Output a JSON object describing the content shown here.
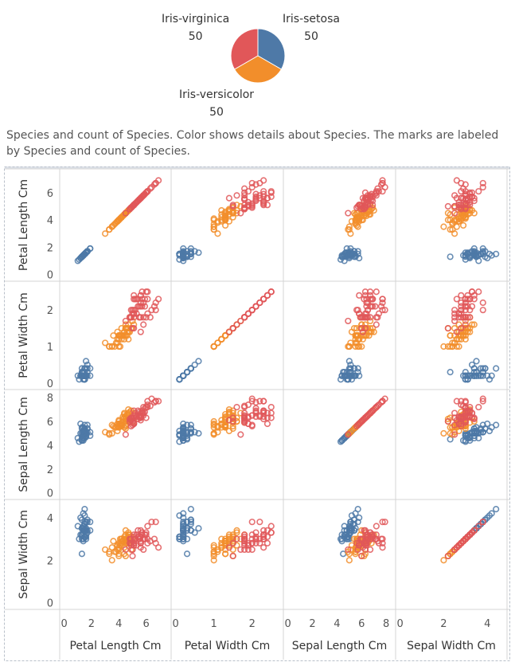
{
  "pie": {
    "slices": [
      {
        "name": "Iris-setosa",
        "count": 50,
        "color": "#4e79a7"
      },
      {
        "name": "Iris-versicolor",
        "count": 50,
        "color": "#f28e2b"
      },
      {
        "name": "Iris-virginica",
        "count": 50,
        "color": "#e15759"
      }
    ],
    "labels": {
      "setosa_name": "Iris-setosa",
      "setosa_count": "50",
      "versicolor_name": "Iris-versicolor",
      "versicolor_count": "50",
      "virginica_name": "Iris-virginica",
      "virginica_count": "50"
    }
  },
  "caption": "Species and count of Species.  Color shows details about Species.  The marks are labeled by Species and count of Species.",
  "chart_data": {
    "type": "scatter",
    "variables": [
      "Petal Length Cm",
      "Petal Width Cm",
      "Sepal Length Cm",
      "Sepal Width Cm"
    ],
    "axes": {
      "Petal Length Cm": {
        "range": [
          0,
          7.5
        ],
        "ticks": [
          0,
          2,
          4,
          6
        ]
      },
      "Petal Width Cm": {
        "range": [
          0,
          2.7
        ],
        "ticks": [
          0,
          1,
          2
        ]
      },
      "Sepal Length Cm": {
        "range": [
          0,
          8.4
        ],
        "ticks": [
          0,
          2,
          4,
          6,
          8
        ]
      },
      "Sepal Width Cm": {
        "range": [
          0,
          4.7
        ],
        "ticks": [
          0,
          2,
          4
        ]
      }
    },
    "grid": false,
    "colors": {
      "Iris-setosa": "#4e79a7",
      "Iris-versicolor": "#f28e2b",
      "Iris-virginica": "#e15759"
    },
    "species": [
      {
        "name": "Iris-setosa",
        "points": [
          [
            1.4,
            0.2,
            5.1,
            3.5
          ],
          [
            1.4,
            0.2,
            4.9,
            3.0
          ],
          [
            1.3,
            0.2,
            4.7,
            3.2
          ],
          [
            1.5,
            0.2,
            4.6,
            3.1
          ],
          [
            1.4,
            0.2,
            5.0,
            3.6
          ],
          [
            1.7,
            0.4,
            5.4,
            3.9
          ],
          [
            1.4,
            0.3,
            4.6,
            3.4
          ],
          [
            1.5,
            0.2,
            5.0,
            3.4
          ],
          [
            1.4,
            0.2,
            4.4,
            2.9
          ],
          [
            1.5,
            0.1,
            4.9,
            3.1
          ],
          [
            1.5,
            0.2,
            5.4,
            3.7
          ],
          [
            1.6,
            0.2,
            4.8,
            3.4
          ],
          [
            1.4,
            0.1,
            4.8,
            3.0
          ],
          [
            1.1,
            0.1,
            4.3,
            3.0
          ],
          [
            1.2,
            0.2,
            5.8,
            4.0
          ],
          [
            1.5,
            0.4,
            5.7,
            4.4
          ],
          [
            1.3,
            0.4,
            5.4,
            3.9
          ],
          [
            1.4,
            0.3,
            5.1,
            3.5
          ],
          [
            1.7,
            0.3,
            5.7,
            3.8
          ],
          [
            1.5,
            0.3,
            5.1,
            3.8
          ],
          [
            1.7,
            0.2,
            5.4,
            3.4
          ],
          [
            1.5,
            0.4,
            5.1,
            3.7
          ],
          [
            1.0,
            0.2,
            4.6,
            3.6
          ],
          [
            1.7,
            0.5,
            5.1,
            3.3
          ],
          [
            1.9,
            0.2,
            4.8,
            3.4
          ],
          [
            1.6,
            0.2,
            5.0,
            3.0
          ],
          [
            1.6,
            0.4,
            5.0,
            3.4
          ],
          [
            1.5,
            0.2,
            5.2,
            3.5
          ],
          [
            1.4,
            0.2,
            5.2,
            3.4
          ],
          [
            1.6,
            0.2,
            4.7,
            3.2
          ],
          [
            1.6,
            0.2,
            4.8,
            3.1
          ],
          [
            1.5,
            0.4,
            5.4,
            3.4
          ],
          [
            1.5,
            0.1,
            5.2,
            4.1
          ],
          [
            1.4,
            0.2,
            5.5,
            4.2
          ],
          [
            1.5,
            0.1,
            4.9,
            3.1
          ],
          [
            1.2,
            0.2,
            5.0,
            3.2
          ],
          [
            1.3,
            0.2,
            5.5,
            3.5
          ],
          [
            1.5,
            0.1,
            4.9,
            3.1
          ],
          [
            1.3,
            0.2,
            4.4,
            3.0
          ],
          [
            1.5,
            0.2,
            5.1,
            3.4
          ],
          [
            1.3,
            0.3,
            5.0,
            3.5
          ],
          [
            1.3,
            0.3,
            4.5,
            2.3
          ],
          [
            1.3,
            0.2,
            4.4,
            3.2
          ],
          [
            1.6,
            0.6,
            5.0,
            3.5
          ],
          [
            1.9,
            0.4,
            5.1,
            3.8
          ],
          [
            1.4,
            0.3,
            4.8,
            3.0
          ],
          [
            1.6,
            0.2,
            5.1,
            3.8
          ],
          [
            1.4,
            0.2,
            4.6,
            3.2
          ],
          [
            1.5,
            0.2,
            5.3,
            3.7
          ],
          [
            1.4,
            0.2,
            5.0,
            3.3
          ]
        ]
      },
      {
        "name": "Iris-versicolor",
        "points": [
          [
            4.7,
            1.4,
            7.0,
            3.2
          ],
          [
            4.5,
            1.5,
            6.4,
            3.2
          ],
          [
            4.9,
            1.5,
            6.9,
            3.1
          ],
          [
            4.0,
            1.3,
            5.5,
            2.3
          ],
          [
            4.6,
            1.5,
            6.5,
            2.8
          ],
          [
            4.5,
            1.3,
            5.7,
            2.8
          ],
          [
            4.7,
            1.6,
            6.3,
            3.3
          ],
          [
            3.3,
            1.0,
            4.9,
            2.4
          ],
          [
            4.6,
            1.3,
            6.6,
            2.9
          ],
          [
            3.9,
            1.4,
            5.2,
            2.7
          ],
          [
            3.5,
            1.0,
            5.0,
            2.0
          ],
          [
            4.2,
            1.5,
            5.9,
            3.0
          ],
          [
            4.0,
            1.0,
            6.0,
            2.2
          ],
          [
            4.7,
            1.4,
            6.1,
            2.9
          ],
          [
            3.6,
            1.3,
            5.6,
            2.9
          ],
          [
            4.4,
            1.4,
            6.7,
            3.1
          ],
          [
            4.5,
            1.5,
            5.6,
            3.0
          ],
          [
            4.1,
            1.0,
            5.8,
            2.7
          ],
          [
            4.5,
            1.5,
            6.2,
            2.2
          ],
          [
            3.9,
            1.1,
            5.6,
            2.5
          ],
          [
            4.8,
            1.8,
            5.9,
            3.2
          ],
          [
            4.0,
            1.3,
            6.1,
            2.8
          ],
          [
            4.9,
            1.5,
            6.3,
            2.5
          ],
          [
            4.7,
            1.2,
            6.1,
            2.8
          ],
          [
            4.3,
            1.3,
            6.4,
            2.9
          ],
          [
            4.4,
            1.4,
            6.6,
            3.0
          ],
          [
            4.8,
            1.4,
            6.8,
            2.8
          ],
          [
            5.0,
            1.7,
            6.7,
            3.0
          ],
          [
            4.5,
            1.5,
            6.0,
            2.9
          ],
          [
            3.5,
            1.0,
            5.7,
            2.6
          ],
          [
            3.8,
            1.1,
            5.5,
            2.4
          ],
          [
            3.7,
            1.0,
            5.5,
            2.4
          ],
          [
            3.9,
            1.2,
            5.8,
            2.7
          ],
          [
            5.1,
            1.6,
            6.0,
            2.7
          ],
          [
            4.5,
            1.5,
            5.4,
            3.0
          ],
          [
            4.5,
            1.6,
            6.0,
            3.4
          ],
          [
            4.7,
            1.5,
            6.7,
            3.1
          ],
          [
            4.4,
            1.3,
            6.3,
            2.3
          ],
          [
            4.1,
            1.3,
            5.6,
            3.0
          ],
          [
            4.0,
            1.3,
            5.5,
            2.5
          ],
          [
            4.4,
            1.2,
            5.5,
            2.6
          ],
          [
            4.6,
            1.4,
            6.1,
            3.0
          ],
          [
            4.0,
            1.2,
            5.8,
            2.6
          ],
          [
            3.3,
            1.0,
            5.0,
            2.3
          ],
          [
            4.2,
            1.3,
            5.6,
            2.7
          ],
          [
            4.2,
            1.2,
            5.7,
            3.0
          ],
          [
            4.2,
            1.3,
            5.7,
            2.9
          ],
          [
            4.3,
            1.3,
            6.2,
            2.9
          ],
          [
            3.0,
            1.1,
            5.1,
            2.5
          ],
          [
            4.1,
            1.3,
            5.7,
            2.8
          ]
        ]
      },
      {
        "name": "Iris-virginica",
        "points": [
          [
            6.0,
            2.5,
            6.3,
            3.3
          ],
          [
            5.1,
            1.9,
            5.8,
            2.7
          ],
          [
            5.9,
            2.1,
            7.1,
            3.0
          ],
          [
            5.6,
            1.8,
            6.3,
            2.9
          ],
          [
            5.8,
            2.2,
            6.5,
            3.0
          ],
          [
            6.6,
            2.1,
            7.6,
            3.0
          ],
          [
            4.5,
            1.7,
            4.9,
            2.5
          ],
          [
            6.3,
            1.8,
            7.3,
            2.9
          ],
          [
            5.8,
            1.8,
            6.7,
            2.5
          ],
          [
            6.1,
            2.5,
            7.2,
            3.6
          ],
          [
            5.1,
            2.0,
            6.5,
            3.2
          ],
          [
            5.3,
            1.9,
            6.4,
            2.7
          ],
          [
            5.5,
            2.1,
            6.8,
            3.0
          ],
          [
            5.0,
            2.0,
            5.7,
            2.5
          ],
          [
            5.1,
            2.4,
            5.8,
            2.8
          ],
          [
            5.3,
            2.3,
            6.4,
            3.2
          ],
          [
            5.5,
            1.8,
            6.5,
            3.0
          ],
          [
            6.7,
            2.2,
            7.7,
            3.8
          ],
          [
            6.9,
            2.3,
            7.7,
            2.6
          ],
          [
            5.0,
            1.5,
            6.0,
            2.2
          ],
          [
            5.7,
            2.3,
            6.9,
            3.2
          ],
          [
            4.9,
            2.0,
            5.6,
            2.8
          ],
          [
            6.7,
            2.0,
            7.7,
            2.8
          ],
          [
            4.9,
            1.8,
            6.3,
            2.7
          ],
          [
            5.7,
            2.1,
            6.7,
            3.3
          ],
          [
            6.0,
            1.8,
            7.2,
            3.2
          ],
          [
            4.8,
            1.8,
            6.2,
            2.8
          ],
          [
            4.9,
            1.8,
            6.1,
            3.0
          ],
          [
            5.6,
            2.1,
            6.4,
            2.8
          ],
          [
            5.8,
            1.6,
            7.2,
            3.0
          ],
          [
            6.1,
            1.9,
            7.4,
            2.8
          ],
          [
            6.4,
            2.0,
            7.9,
            3.8
          ],
          [
            5.6,
            2.2,
            6.4,
            2.8
          ],
          [
            5.1,
            1.5,
            6.3,
            2.8
          ],
          [
            5.6,
            1.4,
            6.1,
            2.6
          ],
          [
            6.1,
            2.3,
            7.7,
            3.0
          ],
          [
            5.6,
            2.4,
            6.3,
            3.4
          ],
          [
            5.5,
            1.8,
            6.4,
            3.1
          ],
          [
            4.8,
            1.8,
            6.0,
            3.0
          ],
          [
            5.4,
            2.1,
            6.9,
            3.1
          ],
          [
            5.6,
            2.4,
            6.7,
            3.1
          ],
          [
            5.1,
            2.3,
            6.9,
            3.1
          ],
          [
            5.1,
            1.9,
            5.8,
            2.7
          ],
          [
            5.9,
            2.3,
            6.8,
            3.2
          ],
          [
            5.7,
            2.5,
            6.7,
            3.3
          ],
          [
            5.2,
            2.3,
            6.7,
            3.0
          ],
          [
            5.0,
            1.9,
            6.3,
            2.5
          ],
          [
            5.2,
            2.0,
            6.5,
            3.0
          ],
          [
            5.4,
            2.3,
            6.2,
            3.4
          ],
          [
            5.1,
            1.8,
            5.9,
            3.0
          ]
        ]
      }
    ]
  }
}
